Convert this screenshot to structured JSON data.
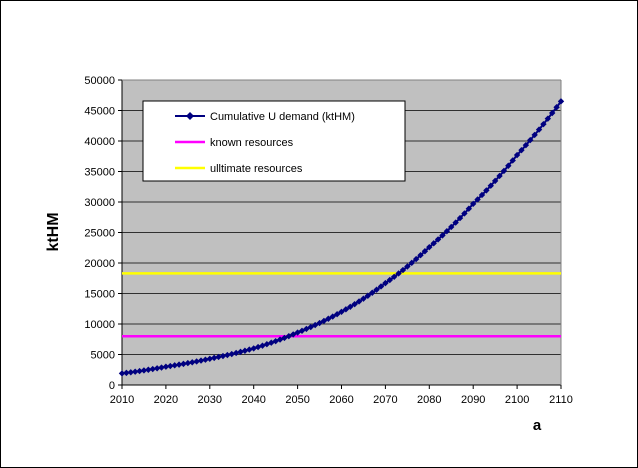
{
  "chart_data": {
    "type": "line",
    "xlabel": "a",
    "ylabel": "ktHM",
    "xlim": [
      2010,
      2110
    ],
    "ylim": [
      0,
      50000
    ],
    "x_ticks": [
      "2010",
      "2020",
      "2030",
      "2040",
      "2050",
      "2060",
      "2070",
      "2080",
      "2090",
      "2100",
      "2110"
    ],
    "y_ticks": [
      "0",
      "5000",
      "10000",
      "15000",
      "20000",
      "25000",
      "30000",
      "35000",
      "40000",
      "45000",
      "50000"
    ],
    "grid": true,
    "plot_background": "#c0c0c0",
    "legend": {
      "placement": "top-left"
    },
    "series": [
      {
        "name": "Cumulative U demand (ktHM)",
        "color": "#000080",
        "marker": "diamond",
        "x": [
          2010,
          2020,
          2030,
          2040,
          2050,
          2060,
          2070,
          2080,
          2090,
          2100,
          2110
        ],
        "y": [
          1900,
          3000,
          4300,
          6000,
          8600,
          12000,
          16700,
          22600,
          29700,
          37700,
          46500
        ]
      },
      {
        "name": "known resources",
        "color": "#ff00ff",
        "x": [
          2010,
          2110
        ],
        "y": [
          8000,
          8000
        ]
      },
      {
        "name": "ulltimate resources",
        "color": "#ffff00",
        "x": [
          2010,
          2110
        ],
        "y": [
          18300,
          18300
        ]
      }
    ]
  }
}
